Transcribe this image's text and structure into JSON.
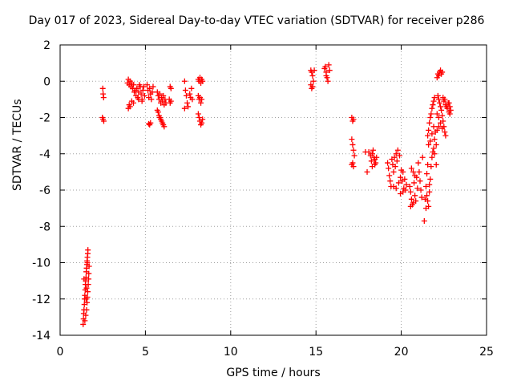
{
  "chart_data": {
    "type": "scatter",
    "title": "Day 017 of 2023, Sidereal Day-to-day VTEC variation (SDTVAR) for receiver p286",
    "xlabel": "GPS time / hours",
    "ylabel": "SDTVAR / TECUs",
    "xlim": [
      0,
      25
    ],
    "ylim": [
      -14,
      2
    ],
    "xticks": [
      0,
      5,
      10,
      15,
      20,
      25
    ],
    "yticks": [
      -14,
      -12,
      -10,
      -8,
      -6,
      -4,
      -2,
      0,
      2
    ],
    "grid": true,
    "marker": "+",
    "color": "#ff0000",
    "series": [
      {
        "name": "SDTVAR",
        "points": [
          [
            1.35,
            -13.4
          ],
          [
            1.37,
            -13.1
          ],
          [
            1.38,
            -12.8
          ],
          [
            1.4,
            -12.6
          ],
          [
            1.42,
            -12.3
          ],
          [
            1.43,
            -12.0
          ],
          [
            1.45,
            -11.8
          ],
          [
            1.47,
            -11.5
          ],
          [
            1.48,
            -11.2
          ],
          [
            1.5,
            -11.0
          ],
          [
            1.52,
            -10.8
          ],
          [
            1.53,
            -10.5
          ],
          [
            1.55,
            -10.3
          ],
          [
            1.57,
            -10.1
          ],
          [
            1.58,
            -9.9
          ],
          [
            1.6,
            -9.7
          ],
          [
            1.62,
            -9.5
          ],
          [
            1.63,
            -9.3
          ],
          [
            1.45,
            -13.2
          ],
          [
            1.5,
            -12.9
          ],
          [
            1.55,
            -12.6
          ],
          [
            1.58,
            -12.2
          ],
          [
            1.6,
            -11.9
          ],
          [
            1.62,
            -11.6
          ],
          [
            1.65,
            -11.2
          ],
          [
            1.67,
            -10.9
          ],
          [
            1.68,
            -10.6
          ],
          [
            1.7,
            -10.2
          ],
          [
            1.52,
            -12.0
          ],
          [
            1.55,
            -11.4
          ],
          [
            1.4,
            -10.9
          ],
          [
            1.6,
            -10.0
          ],
          [
            2.5,
            -0.4
          ],
          [
            2.52,
            -0.7
          ],
          [
            2.55,
            -0.9
          ],
          [
            2.48,
            -2.0
          ],
          [
            2.52,
            -2.1
          ],
          [
            2.56,
            -2.2
          ],
          [
            3.95,
            -0.1
          ],
          [
            4.0,
            0.1
          ],
          [
            4.05,
            -0.2
          ],
          [
            4.1,
            0.0
          ],
          [
            4.15,
            -0.3
          ],
          [
            4.2,
            -0.1
          ],
          [
            4.25,
            -0.4
          ],
          [
            4.3,
            -0.2
          ],
          [
            4.35,
            -0.6
          ],
          [
            4.4,
            -0.5
          ],
          [
            4.45,
            -0.8
          ],
          [
            4.5,
            -0.4
          ],
          [
            4.55,
            -0.9
          ],
          [
            4.6,
            -0.6
          ],
          [
            4.65,
            -0.2
          ],
          [
            4.7,
            -0.3
          ],
          [
            4.75,
            -0.7
          ],
          [
            4.8,
            -1.0
          ],
          [
            4.85,
            -0.5
          ],
          [
            4.9,
            -0.3
          ],
          [
            4.95,
            -0.8
          ],
          [
            4.0,
            -1.5
          ],
          [
            4.05,
            -1.3
          ],
          [
            4.1,
            -1.4
          ],
          [
            4.2,
            -1.1
          ],
          [
            4.3,
            -1.2
          ],
          [
            4.6,
            -1.0
          ],
          [
            4.8,
            -1.1
          ],
          [
            5.1,
            -0.2
          ],
          [
            5.15,
            -0.5
          ],
          [
            5.2,
            -0.9
          ],
          [
            5.25,
            -0.4
          ],
          [
            5.3,
            -0.7
          ],
          [
            5.35,
            -1.0
          ],
          [
            5.4,
            -0.6
          ],
          [
            5.45,
            -0.3
          ],
          [
            5.2,
            -2.35
          ],
          [
            5.25,
            -2.4
          ],
          [
            5.3,
            -2.3
          ],
          [
            5.7,
            -0.6
          ],
          [
            5.75,
            -0.8
          ],
          [
            5.8,
            -1.0
          ],
          [
            5.85,
            -0.7
          ],
          [
            5.9,
            -1.2
          ],
          [
            5.95,
            -0.9
          ],
          [
            6.0,
            -1.1
          ],
          [
            6.05,
            -0.8
          ],
          [
            6.1,
            -1.3
          ],
          [
            6.15,
            -1.0
          ],
          [
            6.2,
            -1.2
          ],
          [
            5.7,
            -1.6
          ],
          [
            5.75,
            -1.7
          ],
          [
            5.8,
            -1.9
          ],
          [
            5.85,
            -2.0
          ],
          [
            5.9,
            -2.1
          ],
          [
            5.95,
            -2.2
          ],
          [
            6.0,
            -2.3
          ],
          [
            6.05,
            -2.4
          ],
          [
            6.1,
            -2.5
          ],
          [
            6.45,
            -0.3
          ],
          [
            6.5,
            -0.4
          ],
          [
            6.4,
            -1.0
          ],
          [
            6.45,
            -1.2
          ],
          [
            6.5,
            -1.1
          ],
          [
            7.3,
            0.0
          ],
          [
            7.35,
            -0.5
          ],
          [
            7.4,
            -0.8
          ],
          [
            7.45,
            -1.2
          ],
          [
            7.5,
            -1.4
          ],
          [
            7.6,
            -0.7
          ],
          [
            7.65,
            -0.9
          ],
          [
            7.7,
            -0.4
          ],
          [
            7.75,
            -1.0
          ],
          [
            7.3,
            -1.5
          ],
          [
            8.1,
            0.1
          ],
          [
            8.15,
            0.0
          ],
          [
            8.2,
            0.2
          ],
          [
            8.25,
            -0.1
          ],
          [
            8.3,
            0.1
          ],
          [
            8.35,
            0.0
          ],
          [
            8.1,
            -0.8
          ],
          [
            8.15,
            -1.0
          ],
          [
            8.2,
            -0.9
          ],
          [
            8.25,
            -1.2
          ],
          [
            8.3,
            -1.0
          ],
          [
            8.1,
            -1.8
          ],
          [
            8.15,
            -2.0
          ],
          [
            8.2,
            -2.2
          ],
          [
            8.25,
            -2.4
          ],
          [
            8.3,
            -2.3
          ],
          [
            8.35,
            -2.1
          ],
          [
            14.7,
            0.6
          ],
          [
            14.75,
            0.5
          ],
          [
            14.8,
            0.3
          ],
          [
            14.85,
            0.0
          ],
          [
            14.7,
            -0.2
          ],
          [
            14.75,
            -0.4
          ],
          [
            14.8,
            -0.3
          ],
          [
            14.9,
            0.6
          ],
          [
            15.5,
            0.7
          ],
          [
            15.55,
            0.8
          ],
          [
            15.6,
            0.5
          ],
          [
            15.65,
            0.2
          ],
          [
            15.7,
            0.0
          ],
          [
            15.75,
            0.9
          ],
          [
            15.8,
            0.6
          ],
          [
            15.6,
            0.3
          ],
          [
            17.1,
            -2.0
          ],
          [
            17.15,
            -2.2
          ],
          [
            17.2,
            -2.1
          ],
          [
            17.1,
            -3.2
          ],
          [
            17.15,
            -3.5
          ],
          [
            17.2,
            -3.8
          ],
          [
            17.25,
            -4.1
          ],
          [
            17.15,
            -4.5
          ],
          [
            17.2,
            -4.7
          ],
          [
            17.1,
            -4.6
          ],
          [
            17.9,
            -3.9
          ],
          [
            18.0,
            -5.0
          ],
          [
            18.1,
            -3.9
          ],
          [
            18.2,
            -4.1
          ],
          [
            18.25,
            -4.4
          ],
          [
            18.3,
            -4.0
          ],
          [
            18.35,
            -3.8
          ],
          [
            18.4,
            -4.2
          ],
          [
            18.45,
            -4.3
          ],
          [
            18.5,
            -4.5
          ],
          [
            18.55,
            -4.2
          ],
          [
            18.3,
            -4.7
          ],
          [
            18.45,
            -4.6
          ],
          [
            19.2,
            -4.5
          ],
          [
            19.25,
            -4.8
          ],
          [
            19.3,
            -5.2
          ],
          [
            19.35,
            -5.5
          ],
          [
            19.4,
            -5.8
          ],
          [
            19.45,
            -4.3
          ],
          [
            19.5,
            -4.6
          ],
          [
            19.55,
            -5.0
          ],
          [
            19.6,
            -4.2
          ],
          [
            19.65,
            -4.7
          ],
          [
            19.7,
            -4.0
          ],
          [
            19.75,
            -4.4
          ],
          [
            19.8,
            -3.8
          ],
          [
            19.85,
            -5.6
          ],
          [
            19.9,
            -4.1
          ],
          [
            19.95,
            -5.3
          ],
          [
            20.0,
            -4.9
          ],
          [
            20.05,
            -5.5
          ],
          [
            20.1,
            -5.0
          ],
          [
            20.15,
            -5.9
          ],
          [
            20.2,
            -5.4
          ],
          [
            20.25,
            -6.0
          ],
          [
            20.3,
            -5.7
          ],
          [
            19.55,
            -5.8
          ],
          [
            19.7,
            -5.9
          ],
          [
            19.95,
            -6.2
          ],
          [
            20.1,
            -6.1
          ],
          [
            20.5,
            -5.8
          ],
          [
            20.55,
            -6.1
          ],
          [
            20.6,
            -6.5
          ],
          [
            20.65,
            -6.8
          ],
          [
            20.7,
            -5.0
          ],
          [
            20.75,
            -5.6
          ],
          [
            20.8,
            -6.3
          ],
          [
            20.85,
            -6.6
          ],
          [
            20.9,
            -5.3
          ],
          [
            20.95,
            -5.9
          ],
          [
            20.6,
            -4.8
          ],
          [
            20.8,
            -5.2
          ],
          [
            20.55,
            -6.9
          ],
          [
            20.7,
            -6.7
          ],
          [
            21.0,
            -4.5
          ],
          [
            21.05,
            -5.0
          ],
          [
            21.1,
            -5.5
          ],
          [
            21.15,
            -6.0
          ],
          [
            21.2,
            -6.4
          ],
          [
            21.25,
            -4.2
          ],
          [
            21.35,
            -7.7
          ],
          [
            21.4,
            -6.5
          ],
          [
            21.45,
            -5.8
          ],
          [
            21.5,
            -5.1
          ],
          [
            21.55,
            -4.6
          ],
          [
            21.6,
            -6.9
          ],
          [
            21.65,
            -6.1
          ],
          [
            21.7,
            -5.4
          ],
          [
            21.75,
            -4.7
          ],
          [
            21.8,
            -4.2
          ],
          [
            21.85,
            -3.9
          ],
          [
            21.9,
            -3.7
          ],
          [
            21.95,
            -3.2
          ],
          [
            22.0,
            -2.8
          ],
          [
            22.05,
            -3.5
          ],
          [
            21.55,
            -3.0
          ],
          [
            21.6,
            -2.7
          ],
          [
            21.65,
            -2.3
          ],
          [
            21.7,
            -2.0
          ],
          [
            21.75,
            -1.8
          ],
          [
            21.8,
            -1.5
          ],
          [
            21.85,
            -1.3
          ],
          [
            21.9,
            -1.1
          ],
          [
            21.95,
            -0.9
          ],
          [
            21.6,
            -3.5
          ],
          [
            21.7,
            -3.3
          ],
          [
            21.8,
            -2.9
          ],
          [
            21.9,
            -2.5
          ],
          [
            21.5,
            -6.3
          ],
          [
            21.55,
            -6.6
          ],
          [
            21.65,
            -5.7
          ],
          [
            21.95,
            -4.0
          ],
          [
            22.05,
            -4.6
          ],
          [
            21.45,
            -7.0
          ],
          [
            22.1,
            0.2
          ],
          [
            22.15,
            0.4
          ],
          [
            22.2,
            0.3
          ],
          [
            22.25,
            0.5
          ],
          [
            22.3,
            0.6
          ],
          [
            22.35,
            0.4
          ],
          [
            22.4,
            0.5
          ],
          [
            22.15,
            -0.8
          ],
          [
            22.2,
            -1.0
          ],
          [
            22.25,
            -1.2
          ],
          [
            22.3,
            -1.4
          ],
          [
            22.35,
            -1.6
          ],
          [
            22.4,
            -1.9
          ],
          [
            22.45,
            -2.2
          ],
          [
            22.5,
            -2.5
          ],
          [
            22.55,
            -2.8
          ],
          [
            22.6,
            -3.0
          ],
          [
            22.1,
            -1.8
          ],
          [
            22.2,
            -2.0
          ],
          [
            22.3,
            -2.3
          ],
          [
            22.4,
            -2.6
          ],
          [
            22.5,
            -1.1
          ],
          [
            22.6,
            -1.3
          ],
          [
            22.7,
            -1.5
          ],
          [
            22.75,
            -1.2
          ],
          [
            22.8,
            -1.7
          ],
          [
            22.85,
            -1.4
          ],
          [
            22.9,
            -1.6
          ],
          [
            22.1,
            -2.7
          ],
          [
            22.2,
            -2.5
          ],
          [
            22.45,
            -0.9
          ],
          [
            22.55,
            -1.0
          ],
          [
            22.65,
            -1.4
          ],
          [
            22.8,
            -1.2
          ],
          [
            22.85,
            -1.8
          ]
        ]
      }
    ]
  }
}
